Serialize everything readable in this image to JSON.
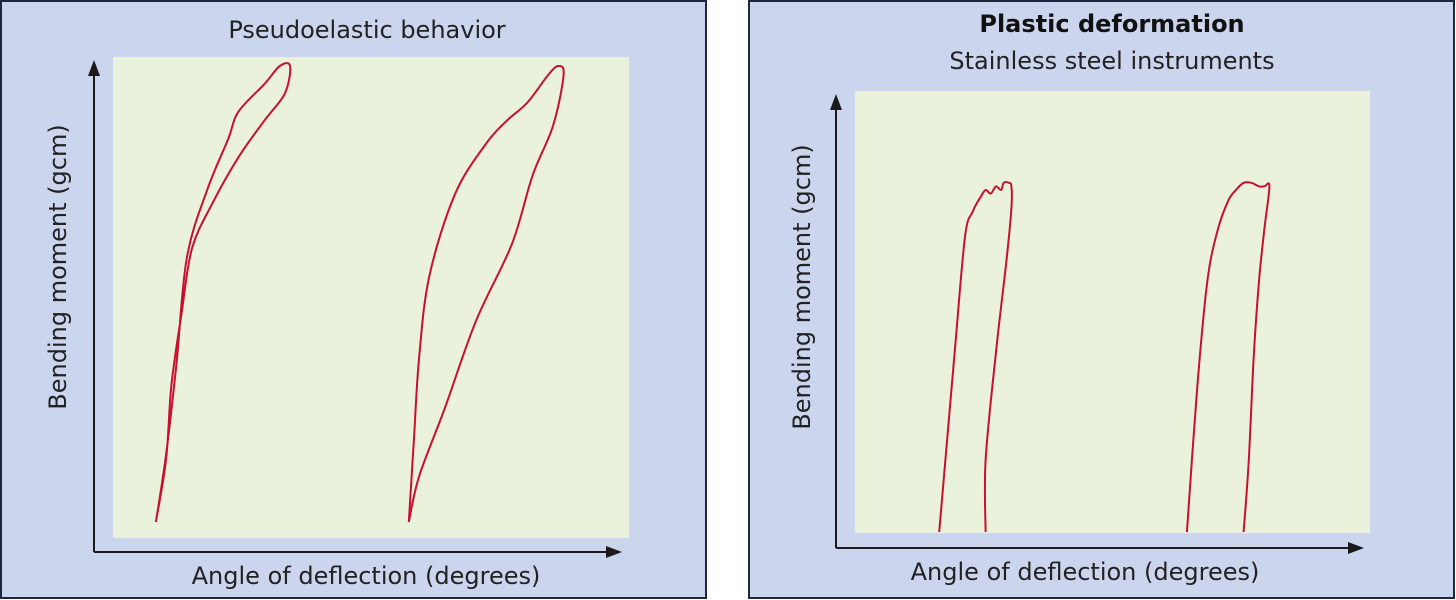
{
  "chart_data": [
    {
      "type": "line",
      "title": "Pseudoelastic behavior",
      "xlabel": "Angle of deflection (degrees)",
      "ylabel": "Bending moment (gcm)",
      "xlim": [
        0,
        100
      ],
      "ylim": [
        0,
        100
      ],
      "grid": false,
      "colors": {
        "panel": "#cbd5ee",
        "plot": "#ebf2dc",
        "curve": "#c8102e",
        "axis": "#1a1a1a"
      },
      "series": [
        {
          "name": "curve-1",
          "x": [
            12,
            14,
            16,
            18,
            22,
            26,
            28,
            33,
            36,
            38,
            37,
            33,
            28,
            23,
            19,
            17,
            15,
            14,
            12
          ],
          "y": [
            0,
            15,
            35,
            58,
            73,
            84,
            90,
            96,
            100,
            100,
            94,
            88,
            80,
            70,
            60,
            46,
            30,
            14,
            0
          ],
          "closed": true
        },
        {
          "name": "curve-2",
          "x": [
            61,
            63,
            68,
            74,
            81,
            85,
            89,
            91,
            90,
            88,
            84,
            80,
            76,
            70,
            65,
            63,
            62,
            61
          ],
          "y": [
            0,
            10,
            25,
            44,
            61,
            76,
            87,
            98,
            100,
            98,
            92,
            88,
            83,
            72,
            54,
            36,
            18,
            0
          ],
          "closed": true
        }
      ]
    },
    {
      "type": "line",
      "title": "Plastic deformation",
      "subtitle": "Stainless steel instruments",
      "xlabel": "Angle of deflection (degrees)",
      "ylabel": "Bending moment (gcm)",
      "xlim": [
        0,
        100
      ],
      "ylim": [
        0,
        100
      ],
      "grid": false,
      "colors": {
        "panel": "#cbd5ee",
        "plot": "#ebf2dc",
        "curve": "#c8102e",
        "axis": "#1a1a1a"
      },
      "series": [
        {
          "name": "curve-1",
          "x": [
            20,
            23,
            25,
            26.5,
            28,
            29,
            30,
            31,
            32,
            32.5,
            33.5,
            34,
            34,
            33,
            31,
            29,
            29
          ],
          "y": [
            0,
            50,
            82,
            89,
            93,
            95,
            94,
            96,
            95,
            97,
            97,
            96,
            90,
            75,
            50,
            20,
            0
          ],
          "closed": false
        },
        {
          "name": "curve-2",
          "x": [
            68,
            70,
            72,
            74,
            76,
            77.5,
            79,
            80.5,
            82,
            83,
            84,
            83,
            82,
            81,
            80,
            79
          ],
          "y": [
            0,
            40,
            70,
            84,
            92,
            95,
            97,
            97,
            96,
            96,
            96,
            84,
            70,
            50,
            20,
            0
          ],
          "closed": false
        }
      ]
    }
  ]
}
